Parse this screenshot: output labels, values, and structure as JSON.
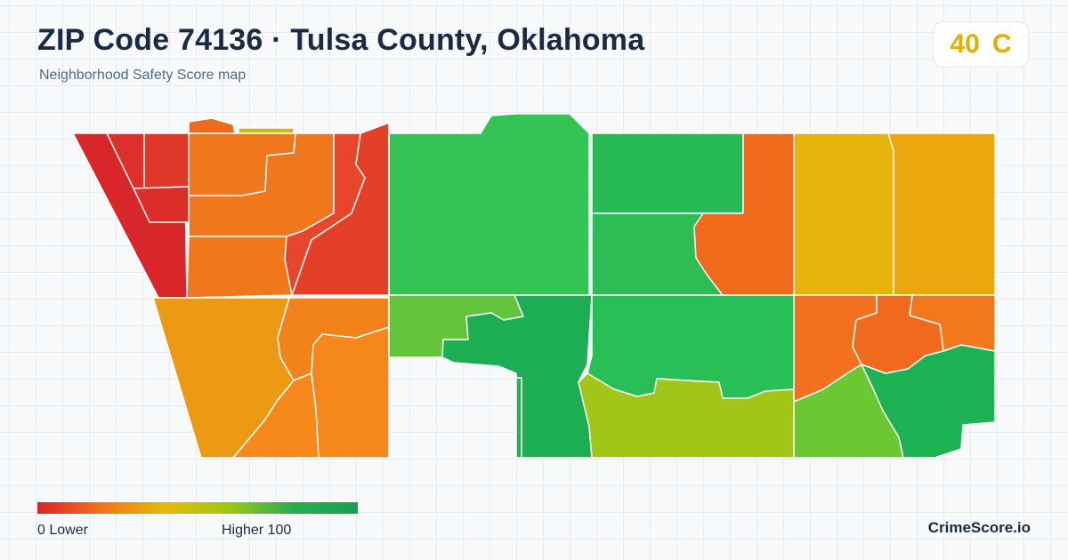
{
  "header": {
    "title": "ZIP Code 74136 · Tulsa County, Oklahoma",
    "subtitle": "Neighborhood Safety Score map"
  },
  "score": {
    "value": "40",
    "grade": "C",
    "color": "#e0b000"
  },
  "legend": {
    "min_label": "0  Lower",
    "max_label": "Higher  100",
    "colors": [
      "#d7242a",
      "#f3741c",
      "#e6b90d",
      "#9cc716",
      "#26ae50",
      "#17a050"
    ]
  },
  "brand": "CrimeScore.io",
  "map": {
    "regions": [
      {
        "name": "region-far-west",
        "color": "#d9262a"
      },
      {
        "name": "region-nw-upper-a",
        "color": "#dc302a"
      },
      {
        "name": "region-nw-upper-b",
        "color": "#df382a"
      },
      {
        "name": "region-nw-mid-small",
        "color": "#db2e29"
      },
      {
        "name": "region-nw-top-tab",
        "color": "#ee6a1e"
      },
      {
        "name": "region-nw-top-sliver",
        "color": "#c6b818"
      },
      {
        "name": "region-nw-orange",
        "color": "#f1771c"
      },
      {
        "name": "region-nw-orange-lower",
        "color": "#f1771c"
      },
      {
        "name": "region-nw-diagonal",
        "color": "#e8462a"
      },
      {
        "name": "region-nw-diagonal-east",
        "color": "#e44028"
      },
      {
        "name": "region-sw-large",
        "color": "#ec9a14"
      },
      {
        "name": "region-sw-middle",
        "color": "#f2821a"
      },
      {
        "name": "region-sw-inner",
        "color": "#f6891a"
      },
      {
        "name": "region-sw-east",
        "color": "#f6871a"
      },
      {
        "name": "region-sw-bottom",
        "color": "#f4811b"
      },
      {
        "name": "region-north-central",
        "color": "#34c355"
      },
      {
        "name": "region-south-central-left",
        "color": "#63c33a"
      },
      {
        "name": "region-south-central-green",
        "color": "#1dae54"
      },
      {
        "name": "region-south-tail",
        "color": "#25b152"
      },
      {
        "name": "region-ne-green-top",
        "color": "#28ba55"
      },
      {
        "name": "region-ne-green-mid",
        "color": "#2dbd55"
      },
      {
        "name": "region-ne-orange",
        "color": "#f06a1c"
      },
      {
        "name": "region-east-green",
        "color": "#28bf57"
      },
      {
        "name": "region-south-yellowgreen",
        "color": "#a2c617"
      },
      {
        "name": "region-east-yellow",
        "color": "#e6b40b"
      },
      {
        "name": "region-far-east-yellow",
        "color": "#eba70e"
      },
      {
        "name": "region-se-orange-west",
        "color": "#f3701e"
      },
      {
        "name": "region-se-orange-north",
        "color": "#f3771b"
      },
      {
        "name": "region-se-orange-blob",
        "color": "#f06a1e"
      },
      {
        "name": "region-se-limegreen",
        "color": "#6ac833"
      },
      {
        "name": "region-se-green",
        "color": "#1db254"
      }
    ]
  }
}
